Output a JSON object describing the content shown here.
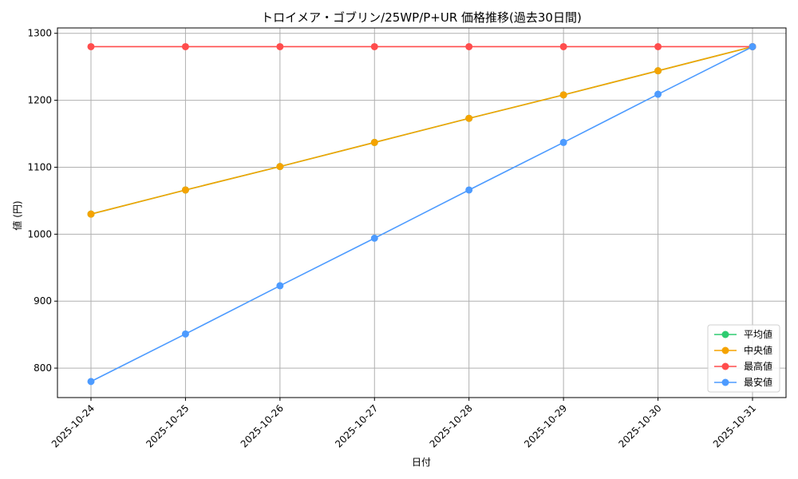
{
  "chart_data": {
    "type": "line",
    "title": "トロイメア・ゴブリン/25WP/P+UR 価格推移(過去30日間)",
    "xlabel": "日付",
    "ylabel": "値 (円)",
    "categories": [
      "2025-10-24",
      "2025-10-25",
      "2025-10-26",
      "2025-10-27",
      "2025-10-28",
      "2025-10-29",
      "2025-10-30",
      "2025-10-31"
    ],
    "series": [
      {
        "name": "平均値",
        "color": "#2ecc71",
        "values": [
          1030,
          1066,
          1101,
          1137,
          1173,
          1208,
          1244,
          1280
        ]
      },
      {
        "name": "中央値",
        "color": "#f5a300",
        "values": [
          1030,
          1066,
          1101,
          1137,
          1173,
          1208,
          1244,
          1280
        ]
      },
      {
        "name": "最高値",
        "color": "#ff4d4d",
        "values": [
          1280,
          1280,
          1280,
          1280,
          1280,
          1280,
          1280,
          1280
        ]
      },
      {
        "name": "最安値",
        "color": "#4d9bff",
        "values": [
          780,
          851,
          923,
          994,
          1066,
          1137,
          1209,
          1280
        ]
      }
    ],
    "ylim": [
      756,
      1308
    ],
    "yticks": [
      800,
      900,
      1000,
      1100,
      1200,
      1300
    ],
    "grid": true,
    "legend_position": "lower right"
  }
}
